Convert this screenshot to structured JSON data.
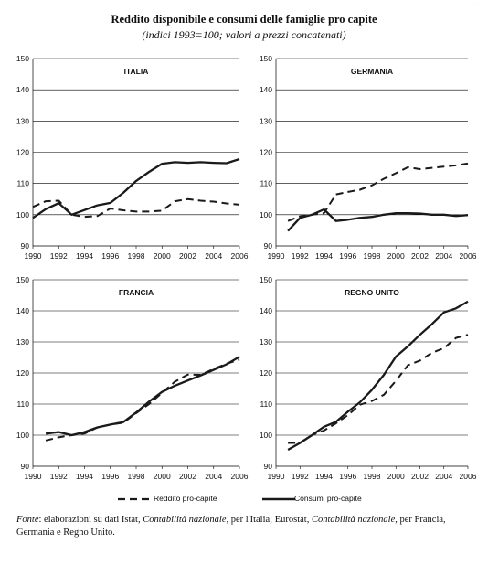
{
  "header": {
    "page_mark": "...",
    "title": "Reddito disponibile e consumi delle famiglie pro capite",
    "subtitle": "(indici 1993=100; valori a prezzi concatenati)"
  },
  "legend": {
    "reddito": "Reddito pro-capite",
    "consumi": "Consumi pro-capite"
  },
  "source": {
    "label": "Fonte",
    "text1": ": elaborazioni su dati Istat, ",
    "ital1": "Contabilità nazionale",
    "text2": ", per l'Italia; Eurostat, ",
    "ital2": "Contabilità nazionale",
    "text3": ", per Francia, Germania e Regno Unito."
  },
  "chart_data": [
    {
      "type": "line",
      "title": "ITALIA",
      "x": [
        1990,
        1991,
        1992,
        1993,
        1994,
        1995,
        1996,
        1997,
        1998,
        1999,
        2000,
        2001,
        2002,
        2003,
        2004,
        2005,
        2006
      ],
      "ylim": [
        90,
        150
      ],
      "yticks": [
        90,
        100,
        110,
        120,
        130,
        140,
        150
      ],
      "xticks": [
        1990,
        1992,
        1994,
        1996,
        1998,
        2000,
        2002,
        2004,
        2006
      ],
      "grid": true,
      "series": [
        {
          "name": "Reddito pro-capite",
          "style": "dashed",
          "values": [
            102.5,
            104.3,
            104.5,
            100.0,
            99.3,
            99.6,
            102.0,
            101.4,
            101.0,
            101.0,
            101.3,
            104.3,
            105.0,
            104.5,
            104.2,
            103.6,
            103.2
          ]
        },
        {
          "name": "Consumi pro-capite",
          "style": "solid",
          "values": [
            99.0,
            101.8,
            103.7,
            100.0,
            101.5,
            103.0,
            103.8,
            107.0,
            110.8,
            113.7,
            116.3,
            116.8,
            116.6,
            116.8,
            116.6,
            116.5,
            117.8
          ]
        }
      ]
    },
    {
      "type": "line",
      "title": "GERMANIA",
      "x": [
        1991,
        1992,
        1993,
        1994,
        1995,
        1996,
        1997,
        1998,
        1999,
        2000,
        2001,
        2002,
        2003,
        2004,
        2005,
        2006
      ],
      "ylim": [
        90,
        150
      ],
      "yticks": [
        90,
        100,
        110,
        120,
        130,
        140,
        150
      ],
      "xticks": [
        1990,
        1992,
        1994,
        1996,
        1998,
        2000,
        2002,
        2004,
        2006
      ],
      "grid": true,
      "series": [
        {
          "name": "Reddito pro-capite",
          "style": "dashed",
          "values": [
            98.0,
            99.5,
            100.0,
            100.5,
            106.5,
            107.3,
            108.0,
            109.4,
            111.5,
            113.3,
            115.2,
            114.6,
            115.0,
            115.4,
            115.8,
            116.4
          ]
        },
        {
          "name": "Consumi pro-capite",
          "style": "solid",
          "values": [
            94.8,
            99.0,
            100.0,
            101.7,
            98.0,
            98.4,
            99.0,
            99.3,
            100.0,
            100.5,
            100.5,
            100.4,
            100.0,
            100.0,
            99.6,
            99.9
          ]
        }
      ]
    },
    {
      "type": "line",
      "title": "FRANCIA",
      "x": [
        1991,
        1992,
        1993,
        1994,
        1995,
        1996,
        1997,
        1998,
        1999,
        2000,
        2001,
        2002,
        2003,
        2004,
        2005,
        2006
      ],
      "ylim": [
        90,
        150
      ],
      "yticks": [
        90,
        100,
        110,
        120,
        130,
        140,
        150
      ],
      "xticks": [
        1990,
        1992,
        1994,
        1996,
        1998,
        2000,
        2002,
        2004,
        2006
      ],
      "grid": true,
      "series": [
        {
          "name": "Reddito pro-capite",
          "style": "dashed",
          "values": [
            98.3,
            99.3,
            100.0,
            100.5,
            102.5,
            103.4,
            104.0,
            107.1,
            110.0,
            113.6,
            117.2,
            119.5,
            119.4,
            121.3,
            123.0,
            124.3
          ]
        },
        {
          "name": "Consumi pro-capite",
          "style": "solid",
          "values": [
            100.5,
            101.0,
            100.0,
            101.0,
            102.5,
            103.4,
            104.2,
            107.3,
            110.8,
            113.9,
            115.9,
            117.6,
            119.2,
            121.0,
            122.8,
            125.2
          ]
        }
      ]
    },
    {
      "type": "line",
      "title": "REGNO UNITO",
      "x": [
        1991,
        1992,
        1993,
        1994,
        1995,
        1996,
        1997,
        1998,
        1999,
        2000,
        2001,
        2002,
        2003,
        2004,
        2005,
        2006
      ],
      "ylim": [
        90,
        150
      ],
      "yticks": [
        90,
        100,
        110,
        120,
        130,
        140,
        150
      ],
      "xticks": [
        1990,
        1992,
        1994,
        1996,
        1998,
        2000,
        2002,
        2004,
        2006
      ],
      "grid": true,
      "series": [
        {
          "name": "Reddito pro-capite",
          "style": "dashed",
          "values": [
            97.5,
            97.5,
            100.0,
            101.5,
            103.8,
            106.5,
            109.8,
            111.0,
            113.0,
            117.5,
            122.5,
            124.0,
            126.5,
            128.0,
            131.3,
            132.3
          ]
        },
        {
          "name": "Consumi pro-capite",
          "style": "solid",
          "values": [
            95.3,
            97.5,
            100.0,
            102.7,
            104.3,
            107.6,
            110.6,
            114.6,
            119.4,
            125.3,
            128.6,
            132.3,
            135.7,
            139.5,
            140.8,
            143.0
          ]
        }
      ]
    }
  ]
}
